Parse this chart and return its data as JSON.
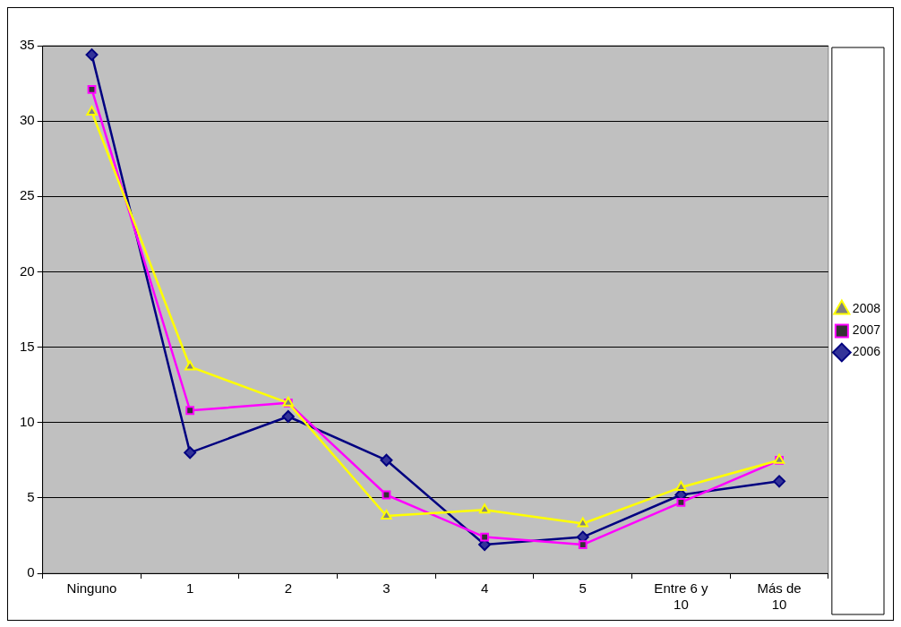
{
  "chart_data": {
    "type": "line",
    "categories": [
      "Ninguno",
      "1",
      "2",
      "3",
      "4",
      "5",
      "Entre 6 y 10",
      "Más de 10"
    ],
    "series": [
      {
        "name": "2006",
        "color": "#000080",
        "marker": "diamond",
        "values": [
          34.4,
          8.0,
          10.4,
          7.5,
          1.9,
          2.4,
          5.2,
          6.1
        ]
      },
      {
        "name": "2007",
        "color": "#ff00ff",
        "marker": "square",
        "values": [
          32.1,
          10.8,
          11.3,
          5.2,
          2.4,
          1.9,
          4.7,
          7.5
        ]
      },
      {
        "name": "2008",
        "color": "#ffff00",
        "marker": "triangle",
        "values": [
          30.6,
          13.7,
          11.3,
          3.8,
          4.2,
          3.3,
          5.7,
          7.5
        ]
      }
    ],
    "ylim": [
      0,
      35
    ],
    "yticks": [
      0,
      5,
      10,
      15,
      20,
      25,
      30,
      35
    ],
    "grid": "y",
    "legend": "right"
  }
}
